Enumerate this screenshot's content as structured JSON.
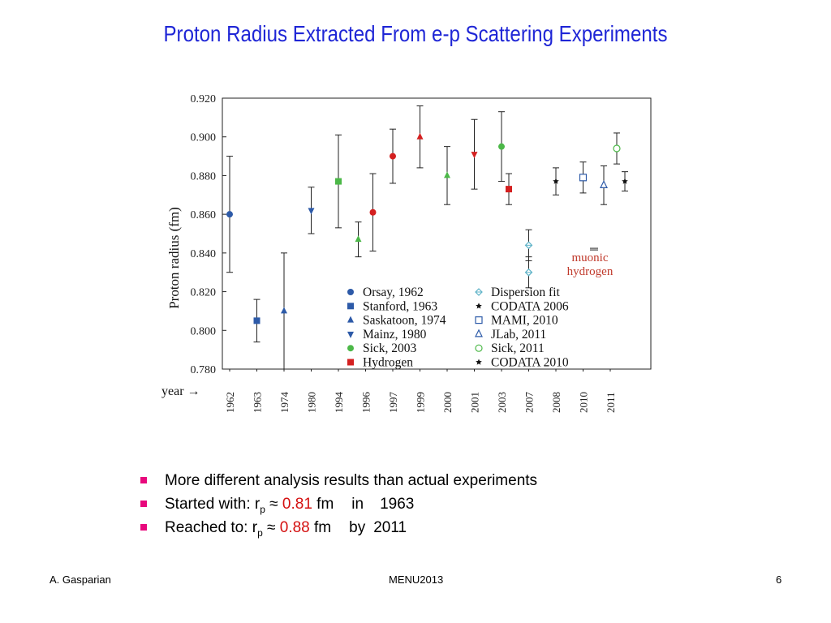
{
  "slide": {
    "title": "Proton Radius Extracted From e-p Scattering Experiments",
    "bullets": [
      {
        "text": "More different analysis results than actual experiments"
      },
      {
        "prefix": "Started with:  r",
        "sub": "p",
        "approx": " ≈ ",
        "value": "0.81",
        "unit": " fm",
        "connector": "in",
        "year": "1963"
      },
      {
        "prefix": "Reached to:   r",
        "sub": "p",
        "approx": " ≈ ",
        "value": "0.88",
        "unit": " fm",
        "connector": "by",
        "year": "2011"
      }
    ],
    "footer": {
      "author": "A. Gasparian",
      "center": "MENU2013",
      "page": "6"
    }
  },
  "colors": {
    "title": "#1f26d6",
    "bullet": "#e8087c",
    "highlight": "#d41010",
    "blue": "#2d5aa8",
    "green": "#4cb848",
    "red": "#d42020",
    "lightblue": "#5fb3c8",
    "muonic_label": "#c0392b"
  },
  "chart_data": {
    "type": "scatter",
    "xlabel": "year →",
    "ylabel": "Proton radius (fm)",
    "ylim": [
      0.78,
      0.92
    ],
    "y_ticks": [
      "0.920",
      "0.900",
      "0.880",
      "0.860",
      "0.840",
      "0.820",
      "0.800",
      "0.780"
    ],
    "categories": [
      "1962",
      "1963",
      "1974",
      "1980",
      "1994",
      "1996",
      "1997",
      "1999",
      "2000",
      "2001",
      "2003",
      "2007",
      "2008",
      "2010",
      "2011"
    ],
    "points": [
      {
        "year": "1962",
        "value": 0.86,
        "err_low": 0.83,
        "err_high": 0.89,
        "marker": "circle",
        "color": "blue"
      },
      {
        "year": "1963",
        "value": 0.805,
        "err_low": 0.794,
        "err_high": 0.816,
        "marker": "square",
        "color": "blue"
      },
      {
        "year": "1974",
        "value": 0.81,
        "err_low": 0.78,
        "err_high": 0.84,
        "marker": "triangle",
        "color": "blue"
      },
      {
        "year": "1980",
        "value": 0.862,
        "err_low": 0.85,
        "err_high": 0.874,
        "marker": "triangle-down",
        "color": "blue"
      },
      {
        "year": "1994",
        "value": 0.877,
        "err_low": 0.853,
        "err_high": 0.901,
        "marker": "square",
        "color": "green"
      },
      {
        "year": "1996",
        "value": 0.847,
        "err_low": 0.838,
        "err_high": 0.856,
        "marker": "triangle",
        "color": "green"
      },
      {
        "year": "1996",
        "value": 0.861,
        "err_low": 0.841,
        "err_high": 0.881,
        "marker": "circle",
        "color": "red"
      },
      {
        "year": "1997",
        "value": 0.89,
        "err_low": 0.876,
        "err_high": 0.904,
        "marker": "circle",
        "color": "red"
      },
      {
        "year": "1999",
        "value": 0.9,
        "err_low": 0.884,
        "err_high": 0.916,
        "marker": "triangle",
        "color": "red"
      },
      {
        "year": "2000",
        "value": 0.88,
        "err_low": 0.865,
        "err_high": 0.895,
        "marker": "triangle",
        "color": "green"
      },
      {
        "year": "2001",
        "value": 0.891,
        "err_low": 0.873,
        "err_high": 0.909,
        "marker": "triangle-down",
        "color": "red"
      },
      {
        "year": "2003",
        "value": 0.895,
        "err_low": 0.877,
        "err_high": 0.913,
        "marker": "circle",
        "color": "green"
      },
      {
        "year": "2003",
        "value": 0.873,
        "err_low": 0.865,
        "err_high": 0.881,
        "marker": "square",
        "color": "red"
      },
      {
        "year": "2007",
        "value": 0.844,
        "err_low": 0.836,
        "err_high": 0.852,
        "marker": "diamond-open",
        "color": "lightblue"
      },
      {
        "year": "2007",
        "value": 0.83,
        "err_low": 0.822,
        "err_high": 0.838,
        "marker": "diamond-open",
        "color": "lightblue"
      },
      {
        "year": "2008",
        "value": 0.877,
        "err_low": 0.87,
        "err_high": 0.884,
        "marker": "star",
        "color": "black"
      },
      {
        "year": "2010",
        "value": 0.879,
        "err_low": 0.871,
        "err_high": 0.887,
        "marker": "square-open",
        "color": "blue"
      },
      {
        "year": "2011",
        "value": 0.875,
        "err_low": 0.865,
        "err_high": 0.885,
        "marker": "triangle-open",
        "color": "blue"
      },
      {
        "year": "2011",
        "value": 0.894,
        "err_low": 0.886,
        "err_high": 0.902,
        "marker": "circle-open",
        "color": "green"
      },
      {
        "year": "2011",
        "value": 0.877,
        "err_low": 0.872,
        "err_high": 0.882,
        "marker": "star",
        "color": "black"
      }
    ],
    "muonic_hydrogen": {
      "value": 0.842,
      "label_line1": "muonic",
      "label_line2": "hydrogen"
    },
    "legend": {
      "placement": "lower-right inside plot",
      "entries": [
        {
          "label": "Orsay, 1962",
          "marker": "circle",
          "color": "blue"
        },
        {
          "label": "Stanford, 1963",
          "marker": "square",
          "color": "blue"
        },
        {
          "label": "Saskatoon, 1974",
          "marker": "triangle",
          "color": "blue"
        },
        {
          "label": "Mainz, 1980",
          "marker": "triangle-down",
          "color": "blue"
        },
        {
          "label": "Sick, 2003",
          "marker": "circle",
          "color": "green"
        },
        {
          "label": "Hydrogen",
          "marker": "square",
          "color": "red"
        },
        {
          "label": "Dispersion fit",
          "marker": "diamond-open",
          "color": "lightblue"
        },
        {
          "label": "CODATA 2006",
          "marker": "star",
          "color": "black"
        },
        {
          "label": "MAMI, 2010",
          "marker": "square-open",
          "color": "blue"
        },
        {
          "label": "JLab, 2011",
          "marker": "triangle-open",
          "color": "blue"
        },
        {
          "label": "Sick, 2011",
          "marker": "circle-open",
          "color": "green"
        },
        {
          "label": "CODATA 2010",
          "marker": "star",
          "color": "black"
        }
      ]
    }
  }
}
